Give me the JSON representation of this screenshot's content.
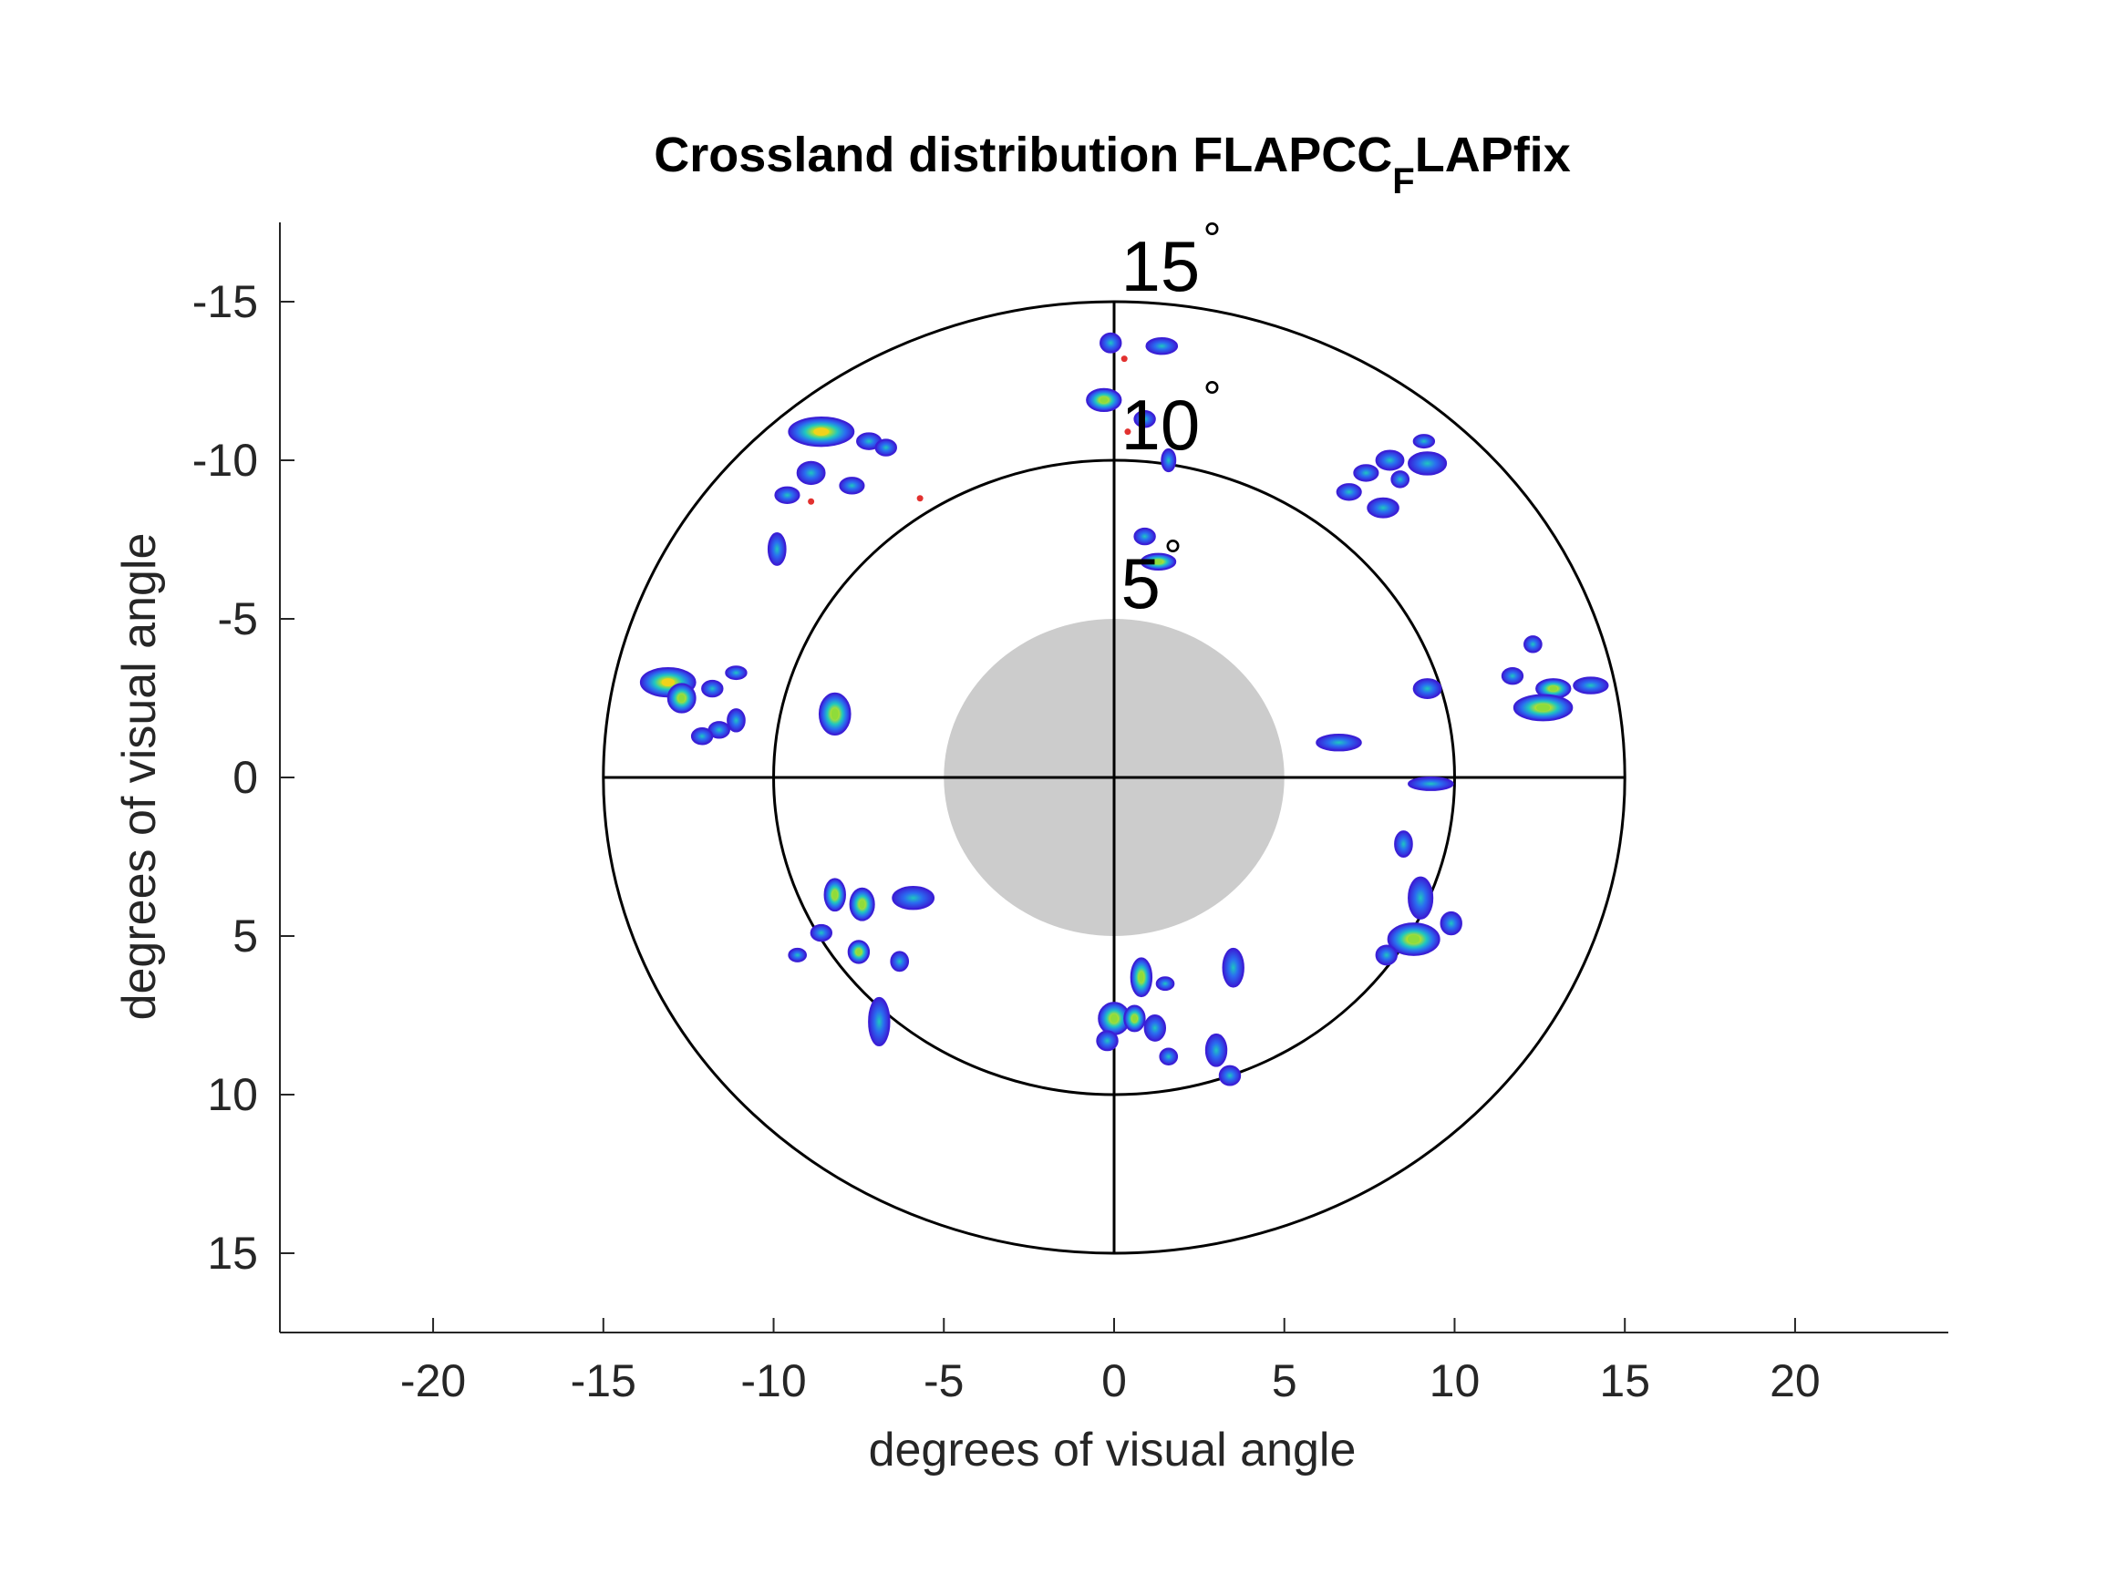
{
  "chart_data": {
    "type": "scatter",
    "title": "Crossland distribution FLAPCC",
    "title_subscript": "F",
    "title_suffix": "LAPfix",
    "xlabel": "degrees of visual angle",
    "ylabel": "degrees of visual angle",
    "xlim": [
      -24.5,
      24.5
    ],
    "ylim": [
      -17.5,
      17.5
    ],
    "y_reversed": true,
    "grid": false,
    "xticks": [
      -20,
      -15,
      -10,
      -5,
      0,
      5,
      10,
      15,
      20
    ],
    "yticks": [
      -15,
      -10,
      -5,
      0,
      5,
      10,
      15
    ],
    "rings": [
      {
        "radius": 5,
        "label": "5",
        "unit": "°",
        "filled": true,
        "fill_color": "#cccccc"
      },
      {
        "radius": 10,
        "label": "10",
        "unit": "°",
        "filled": false
      },
      {
        "radius": 15,
        "label": "15",
        "unit": "°",
        "filled": false
      }
    ],
    "crosshair_extent": 15,
    "colormap": [
      "#3a1fd6",
      "#2a6cf0",
      "#1fc7c0",
      "#b7e02a",
      "#f2d21b",
      "#e2312f"
    ],
    "blobs": [
      {
        "x": -0.1,
        "y": -13.7,
        "w": 0.6,
        "h": 0.6,
        "peak": 0.3
      },
      {
        "x": 1.4,
        "y": -13.6,
        "w": 0.9,
        "h": 0.5,
        "peak": 0.3
      },
      {
        "x": -0.3,
        "y": -11.9,
        "w": 1.0,
        "h": 0.7,
        "peak": 0.6
      },
      {
        "x": 0.9,
        "y": -11.3,
        "w": 0.6,
        "h": 0.5,
        "peak": 0.3
      },
      {
        "x": 1.6,
        "y": -10.0,
        "w": 0.4,
        "h": 0.7,
        "peak": 0.3
      },
      {
        "x": 0.9,
        "y": -7.6,
        "w": 0.6,
        "h": 0.5,
        "peak": 0.3
      },
      {
        "x": 1.3,
        "y": -6.8,
        "w": 1.0,
        "h": 0.5,
        "peak": 0.5
      },
      {
        "x": -8.6,
        "y": -10.9,
        "w": 1.9,
        "h": 0.9,
        "peak": 0.9
      },
      {
        "x": -7.2,
        "y": -10.6,
        "w": 0.7,
        "h": 0.5,
        "peak": 0.3
      },
      {
        "x": -6.7,
        "y": -10.4,
        "w": 0.6,
        "h": 0.5,
        "peak": 0.3
      },
      {
        "x": -8.9,
        "y": -9.6,
        "w": 0.8,
        "h": 0.7,
        "peak": 0.4
      },
      {
        "x": -9.6,
        "y": -8.9,
        "w": 0.7,
        "h": 0.5,
        "peak": 0.3
      },
      {
        "x": -7.7,
        "y": -9.2,
        "w": 0.7,
        "h": 0.5,
        "peak": 0.3
      },
      {
        "x": -9.9,
        "y": -7.2,
        "w": 0.5,
        "h": 1.0,
        "peak": 0.4
      },
      {
        "x": -13.1,
        "y": -3.0,
        "w": 1.6,
        "h": 0.9,
        "peak": 0.9
      },
      {
        "x": -12.7,
        "y": -2.5,
        "w": 0.8,
        "h": 0.9,
        "peak": 0.6
      },
      {
        "x": -11.8,
        "y": -2.8,
        "w": 0.6,
        "h": 0.5,
        "peak": 0.3
      },
      {
        "x": -11.1,
        "y": -3.3,
        "w": 0.6,
        "h": 0.4,
        "peak": 0.3
      },
      {
        "x": -11.1,
        "y": -1.8,
        "w": 0.5,
        "h": 0.7,
        "peak": 0.3
      },
      {
        "x": -11.6,
        "y": -1.5,
        "w": 0.6,
        "h": 0.5,
        "peak": 0.3
      },
      {
        "x": -12.1,
        "y": -1.3,
        "w": 0.6,
        "h": 0.5,
        "peak": 0.3
      },
      {
        "x": -8.2,
        "y": -2.0,
        "w": 0.9,
        "h": 1.3,
        "peak": 0.6
      },
      {
        "x": 9.1,
        "y": -10.6,
        "w": 0.6,
        "h": 0.4,
        "peak": 0.3
      },
      {
        "x": 9.2,
        "y": -9.9,
        "w": 1.1,
        "h": 0.7,
        "peak": 0.4
      },
      {
        "x": 8.1,
        "y": -10.0,
        "w": 0.8,
        "h": 0.6,
        "peak": 0.3
      },
      {
        "x": 7.4,
        "y": -9.6,
        "w": 0.7,
        "h": 0.5,
        "peak": 0.3
      },
      {
        "x": 8.4,
        "y": -9.4,
        "w": 0.5,
        "h": 0.5,
        "peak": 0.3
      },
      {
        "x": 6.9,
        "y": -9.0,
        "w": 0.7,
        "h": 0.5,
        "peak": 0.3
      },
      {
        "x": 7.9,
        "y": -8.5,
        "w": 0.9,
        "h": 0.6,
        "peak": 0.3
      },
      {
        "x": 9.2,
        "y": -2.8,
        "w": 0.8,
        "h": 0.6,
        "peak": 0.3
      },
      {
        "x": 12.3,
        "y": -4.2,
        "w": 0.5,
        "h": 0.5,
        "peak": 0.3
      },
      {
        "x": 11.7,
        "y": -3.2,
        "w": 0.6,
        "h": 0.5,
        "peak": 0.3
      },
      {
        "x": 12.9,
        "y": -2.8,
        "w": 1.0,
        "h": 0.6,
        "peak": 0.5
      },
      {
        "x": 14.0,
        "y": -2.9,
        "w": 1.0,
        "h": 0.5,
        "peak": 0.3
      },
      {
        "x": 12.6,
        "y": -2.2,
        "w": 1.7,
        "h": 0.8,
        "peak": 0.6
      },
      {
        "x": 6.6,
        "y": -1.1,
        "w": 1.3,
        "h": 0.5,
        "peak": 0.3
      },
      {
        "x": 9.3,
        "y": 0.2,
        "w": 1.3,
        "h": 0.4,
        "peak": 0.3
      },
      {
        "x": -8.2,
        "y": 3.7,
        "w": 0.6,
        "h": 1.0,
        "peak": 0.5
      },
      {
        "x": -7.4,
        "y": 4.0,
        "w": 0.7,
        "h": 1.0,
        "peak": 0.5
      },
      {
        "x": -5.9,
        "y": 3.8,
        "w": 1.2,
        "h": 0.7,
        "peak": 0.3
      },
      {
        "x": -8.6,
        "y": 4.9,
        "w": 0.6,
        "h": 0.5,
        "peak": 0.3
      },
      {
        "x": -7.5,
        "y": 5.5,
        "w": 0.6,
        "h": 0.7,
        "peak": 0.5
      },
      {
        "x": -9.3,
        "y": 5.6,
        "w": 0.5,
        "h": 0.4,
        "peak": 0.3
      },
      {
        "x": -6.3,
        "y": 5.8,
        "w": 0.5,
        "h": 0.6,
        "peak": 0.3
      },
      {
        "x": -6.9,
        "y": 7.7,
        "w": 0.6,
        "h": 1.5,
        "peak": 0.4
      },
      {
        "x": 8.5,
        "y": 2.1,
        "w": 0.5,
        "h": 0.8,
        "peak": 0.4
      },
      {
        "x": 9.0,
        "y": 3.8,
        "w": 0.7,
        "h": 1.3,
        "peak": 0.4
      },
      {
        "x": 9.9,
        "y": 4.6,
        "w": 0.6,
        "h": 0.7,
        "peak": 0.3
      },
      {
        "x": 8.8,
        "y": 5.1,
        "w": 1.5,
        "h": 1.0,
        "peak": 0.5
      },
      {
        "x": 8.0,
        "y": 5.6,
        "w": 0.6,
        "h": 0.6,
        "peak": 0.3
      },
      {
        "x": 0.8,
        "y": 6.3,
        "w": 0.6,
        "h": 1.2,
        "peak": 0.6
      },
      {
        "x": 1.5,
        "y": 6.5,
        "w": 0.5,
        "h": 0.4,
        "peak": 0.3
      },
      {
        "x": 3.5,
        "y": 6.0,
        "w": 0.6,
        "h": 1.2,
        "peak": 0.4
      },
      {
        "x": 0.0,
        "y": 7.6,
        "w": 0.9,
        "h": 1.0,
        "peak": 0.6
      },
      {
        "x": 0.6,
        "y": 7.6,
        "w": 0.6,
        "h": 0.8,
        "peak": 0.5
      },
      {
        "x": 1.2,
        "y": 7.9,
        "w": 0.6,
        "h": 0.8,
        "peak": 0.3
      },
      {
        "x": 1.6,
        "y": 8.8,
        "w": 0.5,
        "h": 0.5,
        "peak": 0.3
      },
      {
        "x": -0.2,
        "y": 8.3,
        "w": 0.6,
        "h": 0.6,
        "peak": 0.3
      },
      {
        "x": 3.0,
        "y": 8.6,
        "w": 0.6,
        "h": 1.0,
        "peak": 0.4
      },
      {
        "x": 3.4,
        "y": 9.4,
        "w": 0.6,
        "h": 0.6,
        "peak": 0.3
      }
    ],
    "outliers": [
      {
        "x": -5.7,
        "y": -8.8
      },
      {
        "x": 0.4,
        "y": -10.9
      },
      {
        "x": 0.3,
        "y": -13.2
      },
      {
        "x": -8.9,
        "y": -8.7
      }
    ]
  }
}
